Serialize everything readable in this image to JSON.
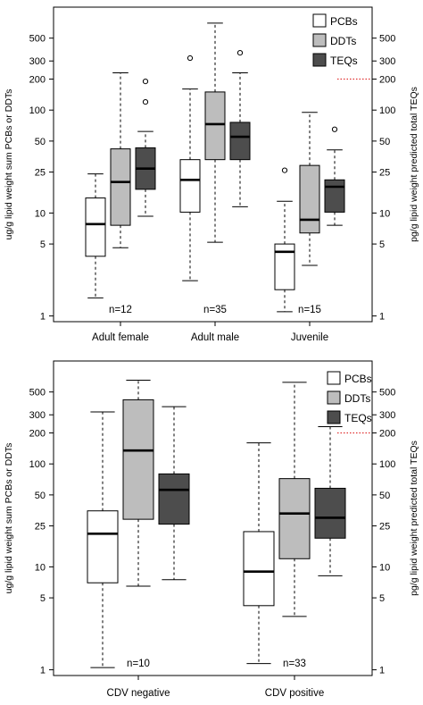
{
  "chart_data": [
    {
      "type": "box",
      "ylabel": "ug/g lipid weight sum PCBs or DDTs",
      "y2label": "pg/g lipid weight predicted total TEQs",
      "yscale": "log",
      "ylim": [
        0.88,
        1000
      ],
      "yticks": [
        "1",
        "5",
        "10",
        "25",
        "50",
        "100",
        "200",
        "300",
        "500"
      ],
      "y2ticks": [
        "1",
        "5",
        "10",
        "25",
        "50",
        "100",
        "200",
        "300",
        "500"
      ],
      "y2_reference_line": 200,
      "series": [
        {
          "name": "PCBs",
          "color": "#ffffff"
        },
        {
          "name": "DDTs",
          "color": "#bdbdbd"
        },
        {
          "name": "TEQs",
          "color": "#4d4d4d"
        }
      ],
      "legend": "top-right",
      "groups": [
        {
          "category": "Adult female",
          "n_label": "n=12",
          "boxes": [
            {
              "series": "PCBs",
              "whisker_low": 1.5,
              "q1": 3.8,
              "median": 7.8,
              "q3": 14,
              "whisker_high": 24,
              "outliers": []
            },
            {
              "series": "DDTs",
              "whisker_low": 4.6,
              "q1": 7.6,
              "median": 20,
              "q3": 42,
              "whisker_high": 230,
              "outliers": []
            },
            {
              "series": "TEQs",
              "whisker_low": 9.3,
              "q1": 17,
              "median": 27,
              "q3": 43,
              "whisker_high": 62,
              "outliers": [
                120,
                190
              ]
            }
          ]
        },
        {
          "category": "Adult male",
          "n_label": "n=35",
          "boxes": [
            {
              "series": "PCBs",
              "whisker_low": 2.2,
              "q1": 10.2,
              "median": 21,
              "q3": 33,
              "whisker_high": 160,
              "outliers": [
                320
              ]
            },
            {
              "series": "DDTs",
              "whisker_low": 5.2,
              "q1": 33,
              "median": 73,
              "q3": 150,
              "whisker_high": 700,
              "outliers": []
            },
            {
              "series": "TEQs",
              "whisker_low": 11.5,
              "q1": 33,
              "median": 55,
              "q3": 76,
              "whisker_high": 230,
              "outliers": [
                360
              ]
            }
          ]
        },
        {
          "category": "Juvenile",
          "n_label": "n=15",
          "boxes": [
            {
              "series": "PCBs",
              "whisker_low": 1.1,
              "q1": 1.8,
              "median": 4.2,
              "q3": 5,
              "whisker_high": 13,
              "outliers": [
                26
              ]
            },
            {
              "series": "DDTs",
              "whisker_low": 3.1,
              "q1": 6.4,
              "median": 8.6,
              "q3": 29,
              "whisker_high": 95,
              "outliers": []
            },
            {
              "series": "TEQs",
              "whisker_low": 7.6,
              "q1": 10.2,
              "median": 18,
              "q3": 21,
              "whisker_high": 41,
              "outliers": [
                65
              ]
            }
          ]
        }
      ]
    },
    {
      "type": "box",
      "ylabel": "ug/g lipid weight sum PCBs or DDTs",
      "y2label": "pg/g lipid weight predicted total TEQs",
      "yscale": "log",
      "ylim": [
        0.88,
        1000
      ],
      "yticks": [
        "1",
        "5",
        "10",
        "25",
        "50",
        "100",
        "200",
        "300",
        "500"
      ],
      "y2ticks": [
        "1",
        "5",
        "10",
        "25",
        "50",
        "100",
        "200",
        "300",
        "500"
      ],
      "y2_reference_line": 200,
      "series": [
        {
          "name": "PCBs",
          "color": "#ffffff"
        },
        {
          "name": "DDTs",
          "color": "#bdbdbd"
        },
        {
          "name": "TEQs",
          "color": "#4d4d4d"
        }
      ],
      "legend": "top-right",
      "groups": [
        {
          "category": "CDV negative",
          "n_label": "n=10",
          "boxes": [
            {
              "series": "PCBs",
              "whisker_low": 1.05,
              "q1": 7,
              "median": 21,
              "q3": 35,
              "whisker_high": 320,
              "outliers": []
            },
            {
              "series": "DDTs",
              "whisker_low": 6.5,
              "q1": 29,
              "median": 135,
              "q3": 420,
              "whisker_high": 650,
              "outliers": []
            },
            {
              "series": "TEQs",
              "whisker_low": 7.5,
              "q1": 26,
              "median": 56,
              "q3": 80,
              "whisker_high": 360,
              "outliers": []
            }
          ]
        },
        {
          "category": "CDV positive",
          "n_label": "n=33",
          "boxes": [
            {
              "series": "PCBs",
              "whisker_low": 1.15,
              "q1": 4.2,
              "median": 9,
              "q3": 22,
              "whisker_high": 160,
              "outliers": []
            },
            {
              "series": "DDTs",
              "whisker_low": 3.3,
              "q1": 12,
              "median": 33,
              "q3": 72,
              "whisker_high": 620,
              "outliers": []
            },
            {
              "series": "TEQs",
              "whisker_low": 8.2,
              "q1": 19,
              "median": 30,
              "q3": 58,
              "whisker_high": 230,
              "outliers": []
            }
          ]
        }
      ]
    }
  ]
}
